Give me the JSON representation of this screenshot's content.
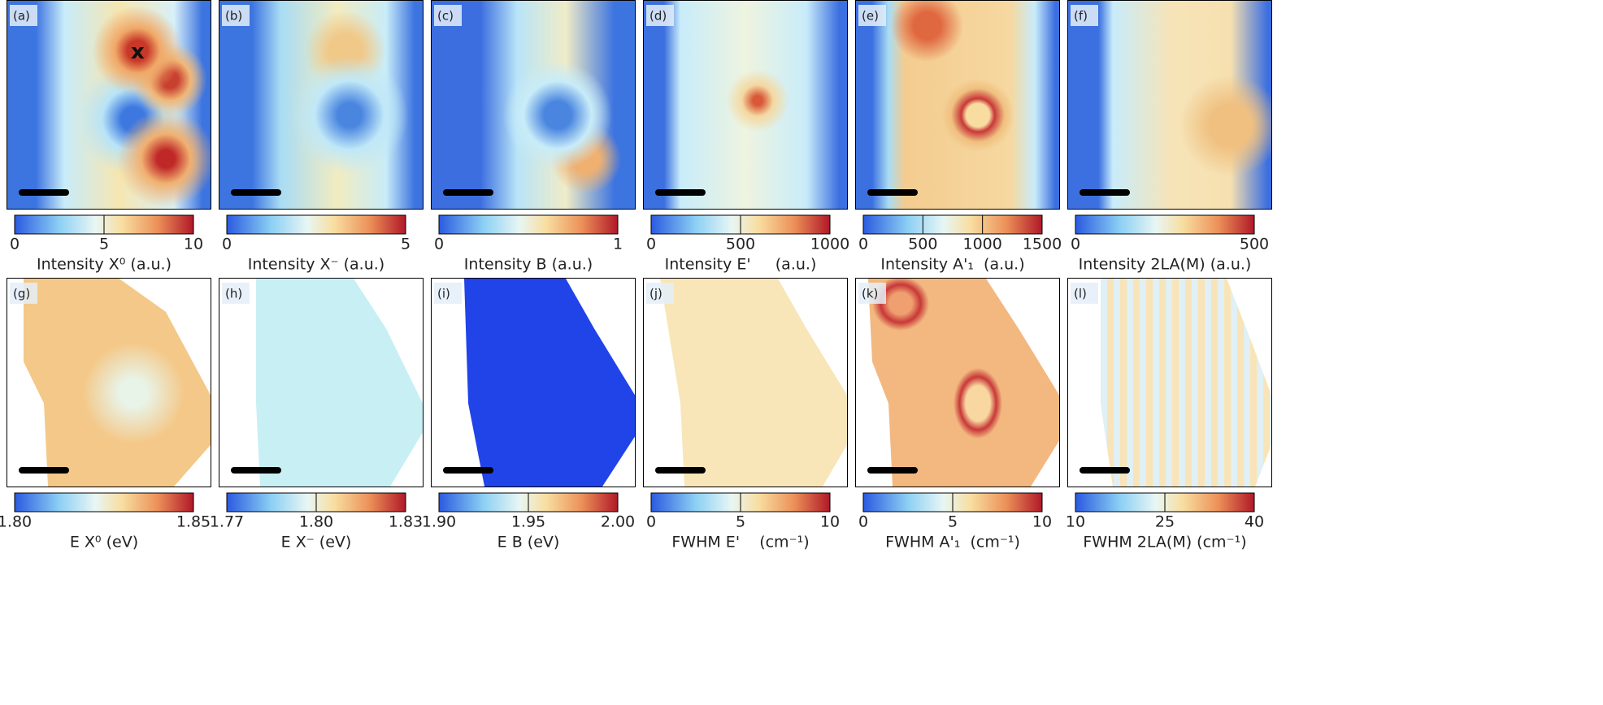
{
  "chart_data": [
    {
      "type": "heatmap",
      "panel": "(a)",
      "colorbar_label": "Intensity X⁰ (a.u.)",
      "clim": [
        0,
        10
      ],
      "cticks": [
        0,
        5,
        10
      ]
    },
    {
      "type": "heatmap",
      "panel": "(b)",
      "colorbar_label": "Intensity X⁻ (a.u.)",
      "clim": [
        0,
        5
      ],
      "cticks": [
        0,
        5
      ]
    },
    {
      "type": "heatmap",
      "panel": "(c)",
      "colorbar_label": "Intensity B (a.u.)",
      "clim": [
        0,
        1
      ],
      "cticks": [
        0,
        1
      ]
    },
    {
      "type": "heatmap",
      "panel": "(d)",
      "colorbar_label": "Intensity E'     (a.u.)",
      "clim": [
        0,
        1000
      ],
      "cticks": [
        0,
        500,
        1000
      ]
    },
    {
      "type": "heatmap",
      "panel": "(e)",
      "colorbar_label": "Intensity A'₁  (a.u.)",
      "clim": [
        0,
        1500
      ],
      "cticks": [
        0,
        500,
        1000,
        1500
      ]
    },
    {
      "type": "heatmap",
      "panel": "(f)",
      "colorbar_label": "Intensity 2LA(M) (a.u.)",
      "clim": [
        0,
        500
      ],
      "cticks": [
        0,
        500
      ]
    },
    {
      "type": "heatmap",
      "panel": "(g)",
      "colorbar_label": "E X⁰ (eV)",
      "clim": [
        1.8,
        1.85
      ],
      "cticks": [
        {
          "value": 1.8,
          "label": "1.80"
        },
        1.85
      ]
    },
    {
      "type": "heatmap",
      "panel": "(h)",
      "colorbar_label": "E X⁻ (eV)",
      "clim": [
        1.77,
        1.83
      ],
      "cticks": [
        1.77,
        {
          "value": 1.8,
          "label": "1.80"
        },
        1.83
      ]
    },
    {
      "type": "heatmap",
      "panel": "(i)",
      "colorbar_label": "E B (eV)",
      "clim": [
        1.9,
        2.0
      ],
      "cticks": [
        {
          "value": 1.9,
          "label": "1.90"
        },
        1.95,
        {
          "value": 2.0,
          "label": "2.00"
        }
      ]
    },
    {
      "type": "heatmap",
      "panel": "(j)",
      "colorbar_label": "FWHM E'    (cm⁻¹)",
      "clim": [
        0,
        10
      ],
      "cticks": [
        0,
        5,
        10
      ]
    },
    {
      "type": "heatmap",
      "panel": "(k)",
      "colorbar_label": "FWHM A'₁  (cm⁻¹)",
      "clim": [
        0,
        10
      ],
      "cticks": [
        0,
        5,
        10
      ]
    },
    {
      "type": "heatmap",
      "panel": "(l)",
      "colorbar_label": "FWHM 2LA(M) (cm⁻¹)",
      "clim": [
        10,
        40
      ],
      "cticks": [
        10,
        25,
        40
      ]
    }
  ]
}
